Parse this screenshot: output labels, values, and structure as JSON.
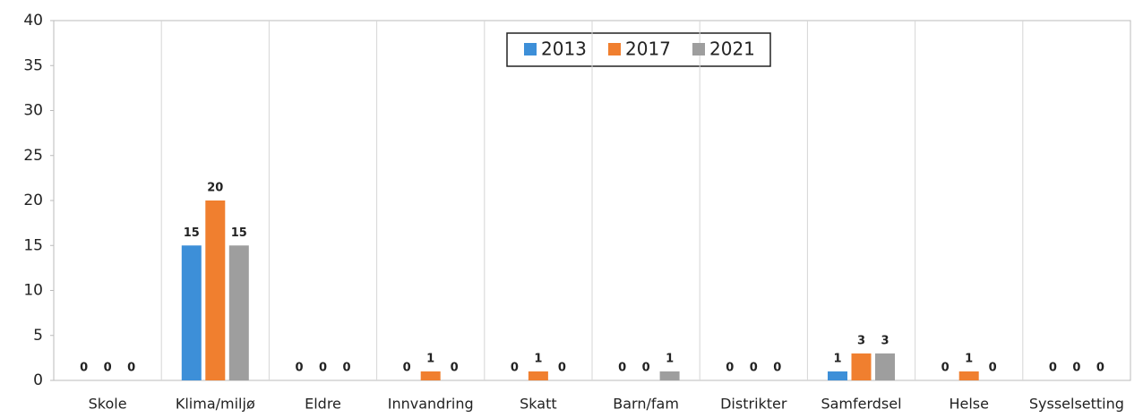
{
  "chart_data": {
    "type": "bar",
    "categories": [
      "Skole",
      "Klima/miljø",
      "Eldre",
      "Innvandring",
      "Skatt",
      "Barn/fam",
      "Distrikter",
      "Samferdsel",
      "Helse",
      "Sysselsetting"
    ],
    "series": [
      {
        "name": "2013",
        "color": "#3d8fd8",
        "values": [
          0,
          15,
          0,
          0,
          0,
          0,
          0,
          1,
          0,
          0
        ]
      },
      {
        "name": "2017",
        "color": "#f07f2f",
        "values": [
          0,
          20,
          0,
          1,
          1,
          0,
          0,
          3,
          1,
          0
        ]
      },
      {
        "name": "2021",
        "color": "#9e9e9e",
        "values": [
          0,
          15,
          0,
          0,
          0,
          1,
          0,
          3,
          0,
          0
        ]
      }
    ],
    "ylim": [
      0,
      40
    ],
    "yticks": [
      0,
      5,
      10,
      15,
      20,
      25,
      30,
      35,
      40
    ],
    "grid": false,
    "legend": "top"
  }
}
